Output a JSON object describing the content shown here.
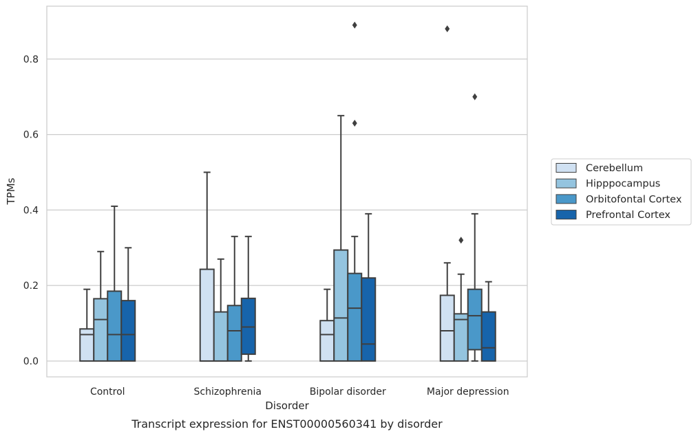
{
  "chart_data": {
    "type": "box",
    "caption": "Transcript expression for ENST00000560341 by disorder",
    "xlabel": "Disorder",
    "ylabel": "TPMs",
    "ylim": [
      -0.042,
      0.94
    ],
    "yticks": [
      0.0,
      0.2,
      0.4,
      0.6,
      0.8
    ],
    "ytick_labels": [
      "0.0",
      "0.2",
      "0.4",
      "0.6",
      "0.8"
    ],
    "grid": "horizontal",
    "legend_position": "right",
    "categories": [
      "Control",
      "Schizophrenia",
      "Bipolar disorder",
      "Major depression"
    ],
    "series": [
      {
        "name": "Cerebellum",
        "color": "#d0e1f2",
        "boxes": [
          {
            "whisker_low": 0.0,
            "q1": 0.0,
            "median": 0.07,
            "q3": 0.085,
            "whisker_high": 0.19,
            "outliers": []
          },
          {
            "whisker_low": 0.0,
            "q1": 0.0,
            "median": 0.0,
            "q3": 0.243,
            "whisker_high": 0.5,
            "outliers": []
          },
          {
            "whisker_low": 0.0,
            "q1": 0.0,
            "median": 0.07,
            "q3": 0.107,
            "whisker_high": 0.19,
            "outliers": []
          },
          {
            "whisker_low": 0.0,
            "q1": 0.0,
            "median": 0.08,
            "q3": 0.174,
            "whisker_high": 0.26,
            "outliers": [
              0.88
            ]
          }
        ]
      },
      {
        "name": "Hipppocampus",
        "color": "#94c4df",
        "boxes": [
          {
            "whisker_low": 0.0,
            "q1": 0.0,
            "median": 0.11,
            "q3": 0.165,
            "whisker_high": 0.29,
            "outliers": []
          },
          {
            "whisker_low": 0.0,
            "q1": 0.0,
            "median": 0.0,
            "q3": 0.13,
            "whisker_high": 0.27,
            "outliers": []
          },
          {
            "whisker_low": 0.0,
            "q1": 0.0,
            "median": 0.114,
            "q3": 0.294,
            "whisker_high": 0.65,
            "outliers": []
          },
          {
            "whisker_low": 0.0,
            "q1": 0.0,
            "median": 0.11,
            "q3": 0.125,
            "whisker_high": 0.23,
            "outliers": [
              0.32
            ]
          }
        ]
      },
      {
        "name": "Orbitofontal Cortex",
        "color": "#4a98c9",
        "boxes": [
          {
            "whisker_low": 0.0,
            "q1": 0.0,
            "median": 0.07,
            "q3": 0.185,
            "whisker_high": 0.41,
            "outliers": []
          },
          {
            "whisker_low": 0.0,
            "q1": 0.0,
            "median": 0.08,
            "q3": 0.147,
            "whisker_high": 0.33,
            "outliers": []
          },
          {
            "whisker_low": 0.0,
            "q1": 0.0,
            "median": 0.14,
            "q3": 0.232,
            "whisker_high": 0.33,
            "outliers": [
              0.89,
              0.63
            ]
          },
          {
            "whisker_low": 0.0,
            "q1": 0.03,
            "median": 0.12,
            "q3": 0.19,
            "whisker_high": 0.39,
            "outliers": [
              0.7
            ]
          }
        ]
      },
      {
        "name": "Prefrontal Cortex",
        "color": "#1764ab",
        "boxes": [
          {
            "whisker_low": 0.0,
            "q1": 0.0,
            "median": 0.07,
            "q3": 0.16,
            "whisker_high": 0.3,
            "outliers": []
          },
          {
            "whisker_low": 0.0,
            "q1": 0.018,
            "median": 0.09,
            "q3": 0.166,
            "whisker_high": 0.33,
            "outliers": []
          },
          {
            "whisker_low": 0.0,
            "q1": 0.0,
            "median": 0.045,
            "q3": 0.22,
            "whisker_high": 0.39,
            "outliers": []
          },
          {
            "whisker_low": 0.0,
            "q1": 0.0,
            "median": 0.035,
            "q3": 0.13,
            "whisker_high": 0.21,
            "outliers": []
          }
        ]
      }
    ]
  }
}
